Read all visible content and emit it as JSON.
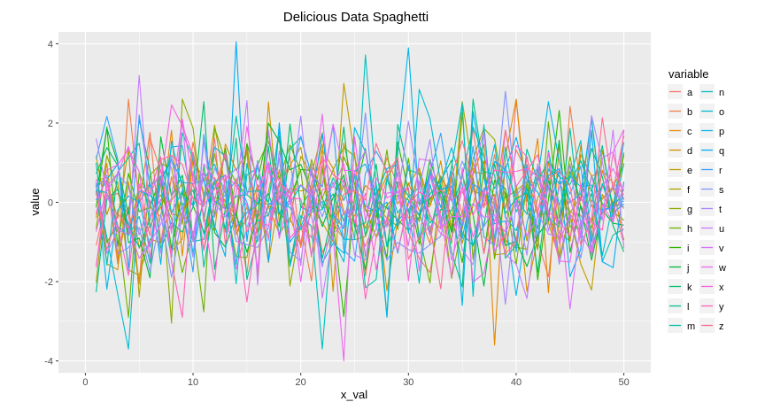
{
  "chart_data": {
    "type": "line",
    "title": "Delicious Data Spaghetti",
    "xlabel": "x_val",
    "ylabel": "value",
    "xlim": [
      -2.5,
      52.5
    ],
    "ylim": [
      -4.3,
      4.3
    ],
    "xticks": [
      0,
      10,
      20,
      30,
      40,
      50
    ],
    "yticks": [
      -4,
      -2,
      0,
      2,
      4
    ],
    "x_range": [
      1,
      50
    ],
    "grid": true,
    "legend": {
      "title": "variable",
      "placement": "right"
    },
    "series": [
      {
        "name": "a",
        "color": "#F8766D"
      },
      {
        "name": "b",
        "color": "#EF7F49"
      },
      {
        "name": "c",
        "color": "#E38900"
      },
      {
        "name": "d",
        "color": "#D39200"
      },
      {
        "name": "e",
        "color": "#C09B00"
      },
      {
        "name": "f",
        "color": "#A9A400"
      },
      {
        "name": "g",
        "color": "#8FAA00"
      },
      {
        "name": "h",
        "color": "#6BB100"
      },
      {
        "name": "i",
        "color": "#2EB600"
      },
      {
        "name": "j",
        "color": "#00BA38"
      },
      {
        "name": "k",
        "color": "#00BE6C"
      },
      {
        "name": "l",
        "color": "#00C08E"
      },
      {
        "name": "m",
        "color": "#00C1A9"
      },
      {
        "name": "n",
        "color": "#00C0C1"
      },
      {
        "name": "o",
        "color": "#00BCD6"
      },
      {
        "name": "p",
        "color": "#00B6E9"
      },
      {
        "name": "q",
        "color": "#00ADF8"
      },
      {
        "name": "r",
        "color": "#35A2FF"
      },
      {
        "name": "s",
        "color": "#8494FF"
      },
      {
        "name": "t",
        "color": "#AA87FF"
      },
      {
        "name": "u",
        "color": "#C77CFF"
      },
      {
        "name": "v",
        "color": "#DC71FA"
      },
      {
        "name": "w",
        "color": "#ED68ED"
      },
      {
        "name": "x",
        "color": "#F863DF"
      },
      {
        "name": "y",
        "color": "#FF62BC"
      },
      {
        "name": "z",
        "color": "#FF6C91"
      }
    ],
    "highlights": [
      {
        "series": "q",
        "x": 14,
        "y": 4.05
      },
      {
        "series": "p",
        "x": 30,
        "y": 3.9
      },
      {
        "series": "n",
        "x": 26,
        "y": 3.72
      },
      {
        "series": "o",
        "x": 31,
        "y": 2.85
      },
      {
        "series": "u",
        "x": 5,
        "y": 3.2
      },
      {
        "series": "s",
        "x": 39,
        "y": 2.8
      },
      {
        "series": "e",
        "x": 24,
        "y": 3.0
      },
      {
        "series": "w",
        "x": 24,
        "y": -4.0
      },
      {
        "series": "o",
        "x": 4,
        "y": -3.7
      },
      {
        "series": "n",
        "x": 22,
        "y": -3.7
      },
      {
        "series": "c",
        "x": 38,
        "y": -3.6
      },
      {
        "series": "g",
        "x": 8,
        "y": -3.05
      }
    ]
  }
}
